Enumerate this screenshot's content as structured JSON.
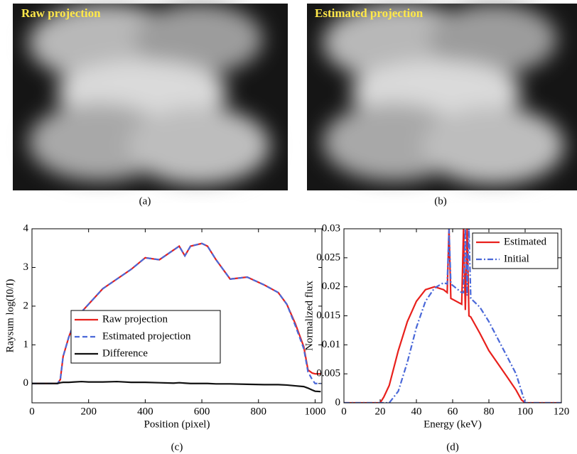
{
  "images": [
    {
      "label": "Raw projection",
      "caption": "(a)"
    },
    {
      "label": "Estimated projection",
      "caption": "(b)"
    }
  ],
  "chart_data": [
    {
      "type": "line",
      "caption": "(c)",
      "xlabel": "Position (pixel)",
      "ylabel": "Raysum log(I0/I)",
      "xlim": [
        0,
        1024
      ],
      "xticks": [
        0,
        200,
        400,
        600,
        800,
        1000
      ],
      "ylim": [
        -0.5,
        4
      ],
      "yticks": [
        0,
        1,
        2,
        3,
        4
      ],
      "legend": "center",
      "x": [
        0,
        90,
        100,
        110,
        130,
        150,
        175,
        200,
        250,
        300,
        350,
        400,
        450,
        500,
        520,
        540,
        560,
        600,
        620,
        650,
        700,
        760,
        820,
        870,
        900,
        930,
        960,
        975,
        990,
        1000,
        1020
      ],
      "series": [
        {
          "name": "Raw projection",
          "color": "#e8201c",
          "linestyle": "solid",
          "values": [
            0,
            0,
            0.1,
            0.7,
            1.2,
            1.6,
            1.85,
            2.05,
            2.45,
            2.7,
            2.95,
            3.25,
            3.2,
            3.45,
            3.55,
            3.3,
            3.55,
            3.62,
            3.55,
            3.2,
            2.7,
            2.75,
            2.55,
            2.35,
            2.05,
            1.55,
            0.95,
            0.35,
            0.27,
            0.25,
            0.25
          ]
        },
        {
          "name": "Estimated projection",
          "color": "#4a68d8",
          "linestyle": "dashed",
          "values": [
            0,
            0,
            0.1,
            0.7,
            1.2,
            1.6,
            1.85,
            2.05,
            2.45,
            2.7,
            2.95,
            3.25,
            3.2,
            3.45,
            3.55,
            3.3,
            3.55,
            3.62,
            3.55,
            3.2,
            2.7,
            2.75,
            2.55,
            2.35,
            2.05,
            1.5,
            0.9,
            0.3,
            0.1,
            0,
            0
          ]
        },
        {
          "name": "Difference",
          "color": "#111111",
          "linestyle": "solid",
          "values": [
            0,
            0,
            0.02,
            0.03,
            0.03,
            0.04,
            0.05,
            0.04,
            0.04,
            0.05,
            0.03,
            0.03,
            0.02,
            0.01,
            0.02,
            0.01,
            0,
            0,
            0,
            -0.01,
            -0.01,
            -0.02,
            -0.03,
            -0.03,
            -0.04,
            -0.06,
            -0.08,
            -0.12,
            -0.17,
            -0.2,
            -0.21
          ]
        }
      ]
    },
    {
      "type": "line",
      "caption": "(d)",
      "xlabel": "Energy (keV)",
      "ylabel": "Normalized flux",
      "xlim": [
        0,
        120
      ],
      "xticks": [
        0,
        20,
        40,
        60,
        80,
        100,
        120
      ],
      "ylim": [
        0,
        0.03
      ],
      "yticks": [
        0,
        0.005,
        0.01,
        0.015,
        0.02,
        0.025,
        0.03
      ],
      "legend": "upper right",
      "x": [
        0,
        20,
        22,
        25,
        30,
        35,
        40,
        45,
        50,
        55,
        57,
        58,
        59,
        65,
        66,
        67,
        68,
        69,
        70,
        75,
        80,
        90,
        95,
        98,
        100,
        120
      ],
      "series": [
        {
          "name": "Estimated",
          "color": "#e8201c",
          "linestyle": "solid",
          "values": [
            0,
            0,
            0.001,
            0.003,
            0.009,
            0.014,
            0.0175,
            0.0195,
            0.02,
            0.0195,
            0.019,
            0.03,
            0.018,
            0.017,
            0.03,
            0.016,
            0.03,
            0.015,
            0.0148,
            0.012,
            0.009,
            0.0045,
            0.0022,
            0.0005,
            0,
            0
          ]
        },
        {
          "name": "Initial",
          "color": "#4a68d8",
          "linestyle": "dashdot",
          "values": [
            0,
            0,
            0,
            0,
            0.002,
            0.007,
            0.013,
            0.0175,
            0.0198,
            0.0207,
            0.0205,
            0.03,
            0.0205,
            0.019,
            0.019,
            0.03,
            0.0185,
            0.03,
            0.018,
            0.0165,
            0.014,
            0.008,
            0.005,
            0.002,
            0,
            0
          ]
        }
      ]
    }
  ]
}
